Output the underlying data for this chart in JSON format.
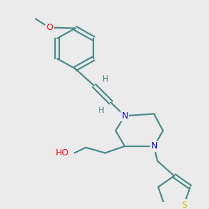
{
  "bg_color": "#ebebeb",
  "bond_color": "#4a8a8a",
  "atom_colors": {
    "O": "#ff0000",
    "N": "#0000ee",
    "S": "#cccc00",
    "H": "#4a8a8a"
  },
  "figsize": [
    3.0,
    3.0
  ],
  "dpi": 100
}
